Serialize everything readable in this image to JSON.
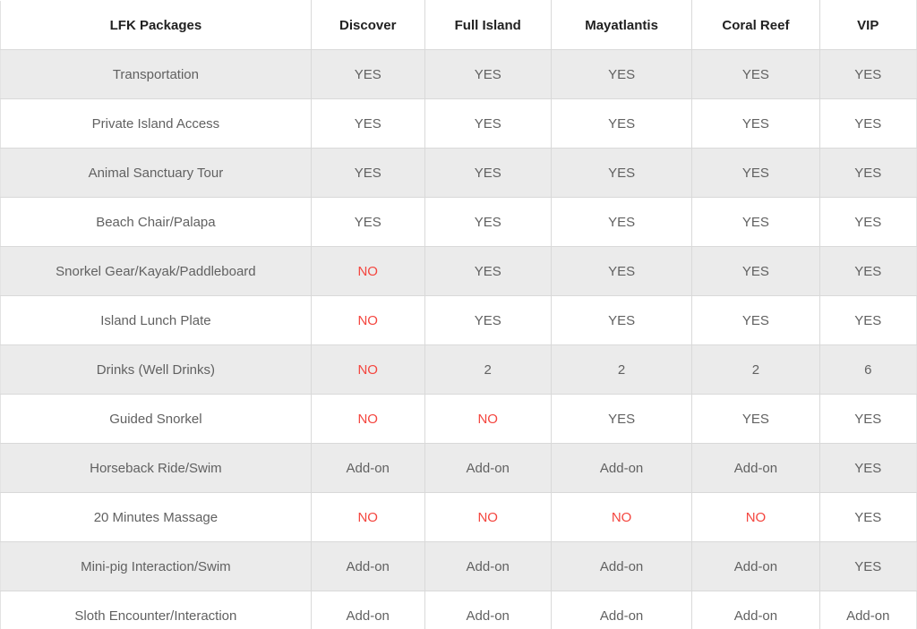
{
  "colors": {
    "no_value_red": "#f4453e",
    "header_text": "#212121",
    "body_text": "#616161",
    "alt_row_bg": "#ebebeb",
    "grid_border": "#d9d9d9"
  },
  "table": {
    "name": "LFK Packages comparison table",
    "columns": [
      "LFK Packages",
      "Discover",
      "Full Island",
      "Mayatlantis",
      "Coral Reef",
      "VIP"
    ],
    "column_widths_pct": [
      33.9,
      12.4,
      13.8,
      15.4,
      13.9,
      10.6
    ],
    "rows": [
      {
        "label": "Transportation",
        "values": [
          "YES",
          "YES",
          "YES",
          "YES",
          "YES"
        ]
      },
      {
        "label": "Private Island Access",
        "values": [
          "YES",
          "YES",
          "YES",
          "YES",
          "YES"
        ]
      },
      {
        "label": "Animal Sanctuary Tour",
        "values": [
          "YES",
          "YES",
          "YES",
          "YES",
          "YES"
        ]
      },
      {
        "label": "Beach Chair/Palapa",
        "values": [
          "YES",
          "YES",
          "YES",
          "YES",
          "YES"
        ]
      },
      {
        "label": "Snorkel Gear/Kayak/Paddleboard",
        "values": [
          "NO",
          "YES",
          "YES",
          "YES",
          "YES"
        ]
      },
      {
        "label": "Island Lunch Plate",
        "values": [
          "NO",
          "YES",
          "YES",
          "YES",
          "YES"
        ]
      },
      {
        "label": "Drinks (Well Drinks)",
        "values": [
          "NO",
          "2",
          "2",
          "2",
          "6"
        ]
      },
      {
        "label": "Guided Snorkel",
        "values": [
          "NO",
          "NO",
          "YES",
          "YES",
          "YES"
        ]
      },
      {
        "label": "Horseback Ride/Swim",
        "values": [
          "Add-on",
          "Add-on",
          "Add-on",
          "Add-on",
          "YES"
        ]
      },
      {
        "label": "20 Minutes Massage",
        "values": [
          "NO",
          "NO",
          "NO",
          "NO",
          "YES"
        ]
      },
      {
        "label": "Mini-pig Interaction/Swim",
        "values": [
          "Add-on",
          "Add-on",
          "Add-on",
          "Add-on",
          "YES"
        ]
      },
      {
        "label": "Sloth Encounter/Interaction",
        "values": [
          "Add-on",
          "Add-on",
          "Add-on",
          "Add-on",
          "Add-on"
        ]
      }
    ]
  }
}
